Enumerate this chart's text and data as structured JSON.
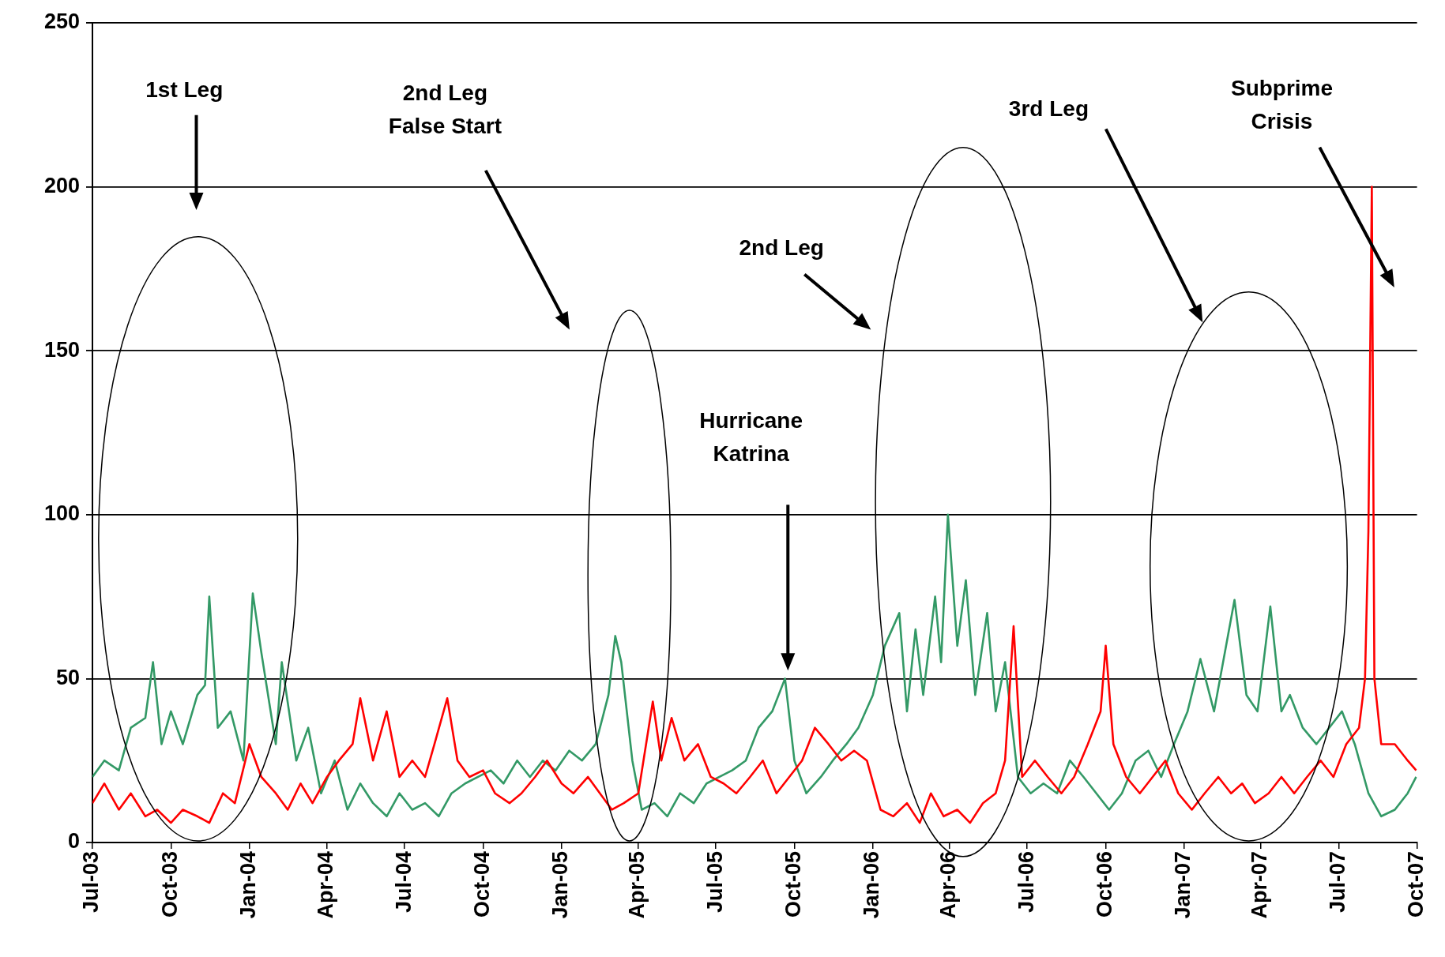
{
  "chart_data": {
    "type": "line",
    "xlim": [
      "2003-07-01",
      "2007-10-01"
    ],
    "ylim": [
      0,
      250
    ],
    "yticks": [
      0,
      50,
      100,
      150,
      200,
      250
    ],
    "xticks": [
      {
        "value": "2003-07-01",
        "label": "Jul-03"
      },
      {
        "value": "2003-10-01",
        "label": "Oct-03"
      },
      {
        "value": "2004-01-01",
        "label": "Jan-04"
      },
      {
        "value": "2004-04-01",
        "label": "Apr-04"
      },
      {
        "value": "2004-07-01",
        "label": "Jul-04"
      },
      {
        "value": "2004-10-01",
        "label": "Oct-04"
      },
      {
        "value": "2005-01-01",
        "label": "Jan-05"
      },
      {
        "value": "2005-04-01",
        "label": "Apr-05"
      },
      {
        "value": "2005-07-01",
        "label": "Jul-05"
      },
      {
        "value": "2005-10-01",
        "label": "Oct-05"
      },
      {
        "value": "2006-01-01",
        "label": "Jan-06"
      },
      {
        "value": "2006-04-01",
        "label": "Apr-06"
      },
      {
        "value": "2006-07-01",
        "label": "Jul-06"
      },
      {
        "value": "2006-10-01",
        "label": "Oct-06"
      },
      {
        "value": "2007-01-01",
        "label": "Jan-07"
      },
      {
        "value": "2007-04-01",
        "label": "Apr-07"
      },
      {
        "value": "2007-07-01",
        "label": "Jul-07"
      },
      {
        "value": "2007-10-01",
        "label": "Oct-07"
      }
    ],
    "grid": "y",
    "legend": false,
    "marker": "none",
    "line_style": "solid",
    "annotations": [
      "1st Leg",
      "2nd Leg\nFalse Start",
      "Hurricane\nKatrina",
      "2nd Leg",
      "3rd Leg",
      "Subprime\nCrisis"
    ],
    "series": [
      {
        "color": "#ff0000",
        "x": [
          "2003-07-01",
          "2003-07-15",
          "2003-08-01",
          "2003-08-15",
          "2003-09-01",
          "2003-09-15",
          "2003-10-01",
          "2003-10-15",
          "2003-11-01",
          "2003-11-15",
          "2003-12-01",
          "2003-12-15",
          "2004-01-01",
          "2004-01-15",
          "2004-02-01",
          "2004-02-15",
          "2004-03-01",
          "2004-03-15",
          "2004-04-01",
          "2004-04-15",
          "2004-05-01",
          "2004-05-10",
          "2004-05-25",
          "2004-06-10",
          "2004-06-25",
          "2004-07-10",
          "2004-07-25",
          "2004-08-05",
          "2004-08-20",
          "2004-09-01",
          "2004-09-15",
          "2004-10-01",
          "2004-10-15",
          "2004-11-01",
          "2004-11-15",
          "2004-12-01",
          "2004-12-15",
          "2005-01-01",
          "2005-01-15",
          "2005-02-01",
          "2005-02-15",
          "2005-03-01",
          "2005-03-15",
          "2005-04-01",
          "2005-04-18",
          "2005-04-28",
          "2005-05-10",
          "2005-05-25",
          "2005-06-10",
          "2005-06-25",
          "2005-07-10",
          "2005-07-25",
          "2005-08-10",
          "2005-08-25",
          "2005-09-10",
          "2005-09-25",
          "2005-10-10",
          "2005-10-25",
          "2005-11-10",
          "2005-11-25",
          "2005-12-10",
          "2005-12-25",
          "2006-01-10",
          "2006-01-25",
          "2006-02-10",
          "2006-02-25",
          "2006-03-10",
          "2006-03-25",
          "2006-04-10",
          "2006-04-25",
          "2006-05-10",
          "2006-05-25",
          "2006-06-05",
          "2006-06-15",
          "2006-06-25",
          "2006-07-10",
          "2006-07-25",
          "2006-08-10",
          "2006-08-25",
          "2006-09-10",
          "2006-09-25",
          "2006-10-01",
          "2006-10-10",
          "2006-10-25",
          "2006-11-10",
          "2006-11-25",
          "2006-12-10",
          "2006-12-25",
          "2007-01-10",
          "2007-01-25",
          "2007-02-10",
          "2007-02-25",
          "2007-03-10",
          "2007-03-25",
          "2007-04-10",
          "2007-04-25",
          "2007-05-10",
          "2007-05-25",
          "2007-06-10",
          "2007-06-25",
          "2007-07-10",
          "2007-07-25",
          "2007-08-01",
          "2007-08-05",
          "2007-08-09",
          "2007-08-12",
          "2007-08-20",
          "2007-09-05",
          "2007-09-20",
          "2007-09-30"
        ],
        "values": [
          12,
          18,
          10,
          15,
          8,
          10,
          6,
          10,
          8,
          6,
          15,
          12,
          30,
          20,
          15,
          10,
          18,
          12,
          20,
          25,
          30,
          44,
          25,
          40,
          20,
          25,
          20,
          30,
          44,
          25,
          20,
          22,
          15,
          12,
          15,
          20,
          25,
          18,
          15,
          20,
          15,
          10,
          12,
          15,
          43,
          25,
          38,
          25,
          30,
          20,
          18,
          15,
          20,
          25,
          15,
          20,
          25,
          35,
          30,
          25,
          28,
          25,
          10,
          8,
          12,
          6,
          15,
          8,
          10,
          6,
          12,
          15,
          25,
          66,
          20,
          25,
          20,
          15,
          20,
          30,
          40,
          60,
          30,
          20,
          15,
          20,
          25,
          15,
          10,
          15,
          20,
          15,
          18,
          12,
          15,
          20,
          15,
          20,
          25,
          20,
          30,
          35,
          50,
          95,
          200,
          50,
          30,
          30,
          25,
          22
        ]
      },
      {
        "color": "#339966",
        "x": [
          "2003-07-01",
          "2003-07-15",
          "2003-08-01",
          "2003-08-15",
          "2003-09-01",
          "2003-09-10",
          "2003-09-20",
          "2003-10-01",
          "2003-10-15",
          "2003-11-01",
          "2003-11-10",
          "2003-11-15",
          "2003-11-25",
          "2003-12-10",
          "2003-12-25",
          "2004-01-05",
          "2004-01-15",
          "2004-02-01",
          "2004-02-08",
          "2004-02-25",
          "2004-03-10",
          "2004-03-25",
          "2004-04-10",
          "2004-04-25",
          "2004-05-10",
          "2004-05-25",
          "2004-06-10",
          "2004-06-25",
          "2004-07-10",
          "2004-07-25",
          "2004-08-10",
          "2004-08-25",
          "2004-09-10",
          "2004-09-25",
          "2004-10-10",
          "2004-10-25",
          "2004-11-10",
          "2004-11-25",
          "2004-12-10",
          "2004-12-25",
          "2005-01-10",
          "2005-01-25",
          "2005-02-10",
          "2005-02-25",
          "2005-03-05",
          "2005-03-12",
          "2005-03-25",
          "2005-04-05",
          "2005-04-20",
          "2005-05-05",
          "2005-05-20",
          "2005-06-05",
          "2005-06-20",
          "2005-07-05",
          "2005-07-20",
          "2005-08-05",
          "2005-08-20",
          "2005-09-05",
          "2005-09-20",
          "2005-10-01",
          "2005-10-15",
          "2005-11-01",
          "2005-11-15",
          "2005-12-01",
          "2005-12-15",
          "2006-01-01",
          "2006-01-15",
          "2006-02-01",
          "2006-02-10",
          "2006-02-20",
          "2006-03-01",
          "2006-03-15",
          "2006-03-22",
          "2006-03-30",
          "2006-04-10",
          "2006-04-20",
          "2006-05-01",
          "2006-05-15",
          "2006-05-25",
          "2006-06-05",
          "2006-06-20",
          "2006-07-05",
          "2006-07-20",
          "2006-08-05",
          "2006-08-20",
          "2006-09-05",
          "2006-09-20",
          "2006-10-05",
          "2006-10-20",
          "2006-11-05",
          "2006-11-20",
          "2006-12-05",
          "2006-12-20",
          "2007-01-05",
          "2007-01-20",
          "2007-02-05",
          "2007-03-01",
          "2007-03-15",
          "2007-03-28",
          "2007-04-12",
          "2007-04-25",
          "2007-05-05",
          "2007-05-20",
          "2007-06-05",
          "2007-06-20",
          "2007-07-05",
          "2007-07-20",
          "2007-08-05",
          "2007-08-20",
          "2007-09-05",
          "2007-09-20",
          "2007-09-30"
        ],
        "values": [
          20,
          25,
          22,
          35,
          38,
          55,
          30,
          40,
          30,
          45,
          48,
          75,
          35,
          40,
          25,
          76,
          58,
          30,
          55,
          25,
          35,
          15,
          25,
          10,
          18,
          12,
          8,
          15,
          10,
          12,
          8,
          15,
          18,
          20,
          22,
          18,
          25,
          20,
          25,
          22,
          28,
          25,
          30,
          45,
          63,
          55,
          25,
          10,
          12,
          8,
          15,
          12,
          18,
          20,
          22,
          25,
          35,
          40,
          50,
          25,
          15,
          20,
          25,
          30,
          35,
          45,
          60,
          70,
          40,
          65,
          45,
          75,
          55,
          100,
          60,
          80,
          45,
          70,
          40,
          55,
          20,
          15,
          18,
          15,
          25,
          20,
          15,
          10,
          15,
          25,
          28,
          20,
          30,
          40,
          56,
          40,
          74,
          45,
          40,
          72,
          40,
          45,
          35,
          30,
          35,
          40,
          30,
          15,
          8,
          10,
          15,
          20
        ]
      }
    ]
  }
}
